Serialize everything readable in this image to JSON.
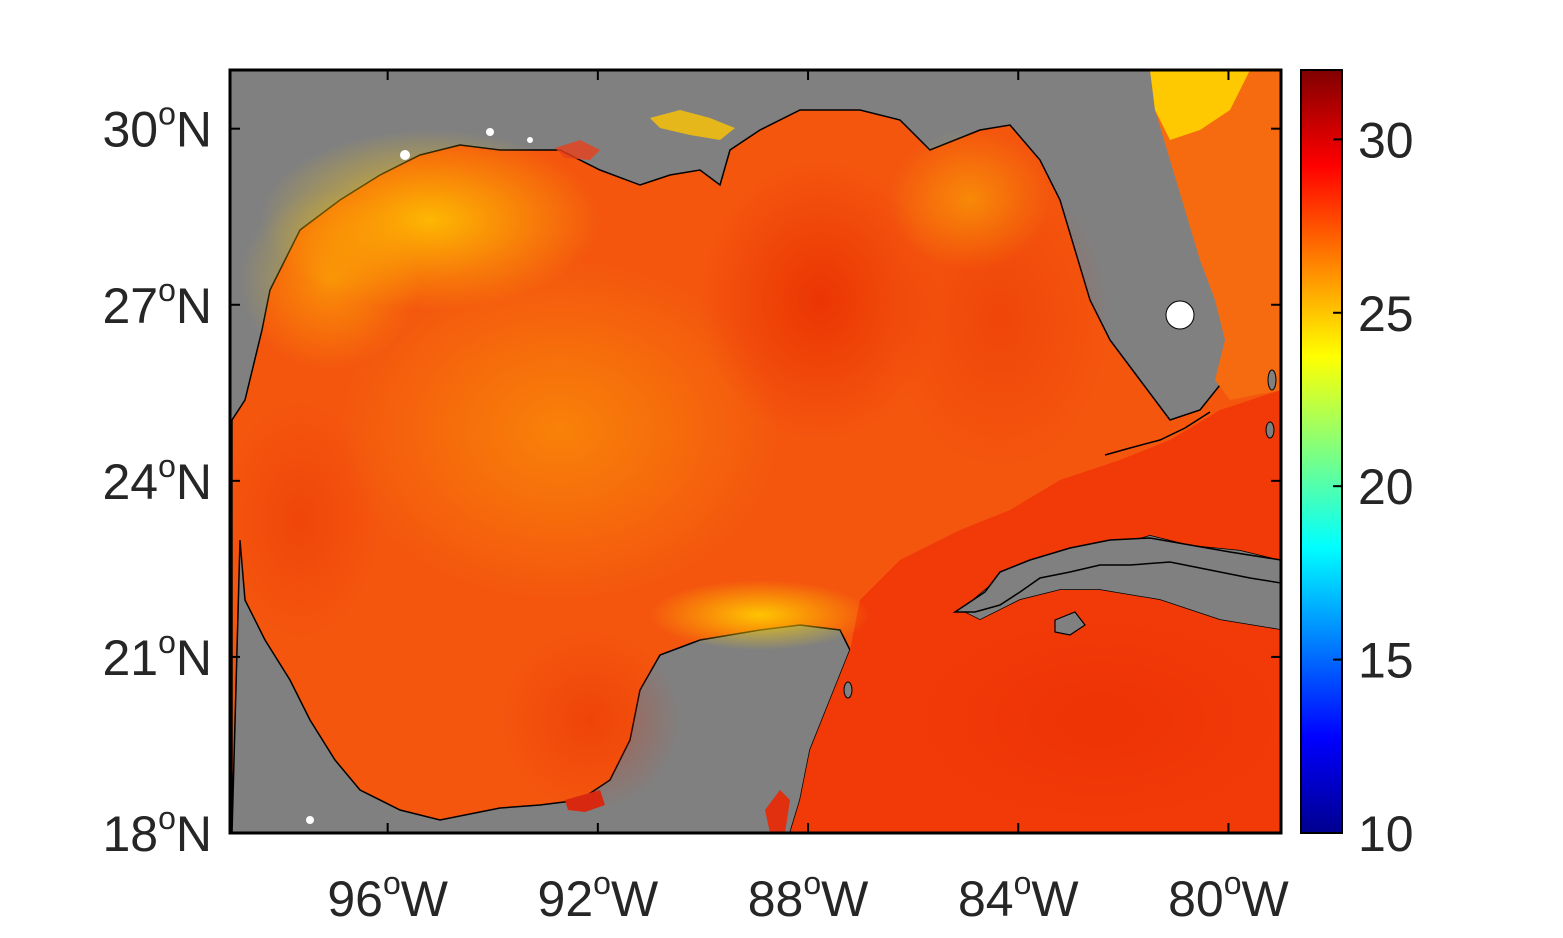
{
  "map": {
    "type": "heatmap",
    "lon_range": [
      -99,
      -79
    ],
    "lat_range": [
      18,
      31
    ],
    "land_color": "#808080",
    "coastline_color": "#000000",
    "lat_ticks": [
      {
        "value": 30,
        "deg": "30",
        "hemi": "N"
      },
      {
        "value": 27,
        "deg": "27",
        "hemi": "N"
      },
      {
        "value": 24,
        "deg": "24",
        "hemi": "N"
      },
      {
        "value": 21,
        "deg": "21",
        "hemi": "N"
      },
      {
        "value": 18,
        "deg": "18",
        "hemi": "N"
      }
    ],
    "lon_ticks": [
      {
        "value": -96,
        "deg": "96",
        "hemi": "W"
      },
      {
        "value": -92,
        "deg": "92",
        "hemi": "W"
      },
      {
        "value": -88,
        "deg": "88",
        "hemi": "W"
      },
      {
        "value": -84,
        "deg": "84",
        "hemi": "W"
      },
      {
        "value": -80,
        "deg": "80",
        "hemi": "W"
      }
    ],
    "degree_symbol": "o"
  },
  "colorbar": {
    "colormap": "jet",
    "range": [
      10,
      32
    ],
    "ticks": [
      {
        "value": 30,
        "label": "30"
      },
      {
        "value": 25,
        "label": "25"
      },
      {
        "value": 20,
        "label": "20"
      },
      {
        "value": 15,
        "label": "15"
      },
      {
        "value": 10,
        "label": "10"
      }
    ],
    "stops": [
      "#00008f",
      "#0000ff",
      "#00ffff",
      "#ffff00",
      "#ff0000",
      "#800000"
    ]
  }
}
